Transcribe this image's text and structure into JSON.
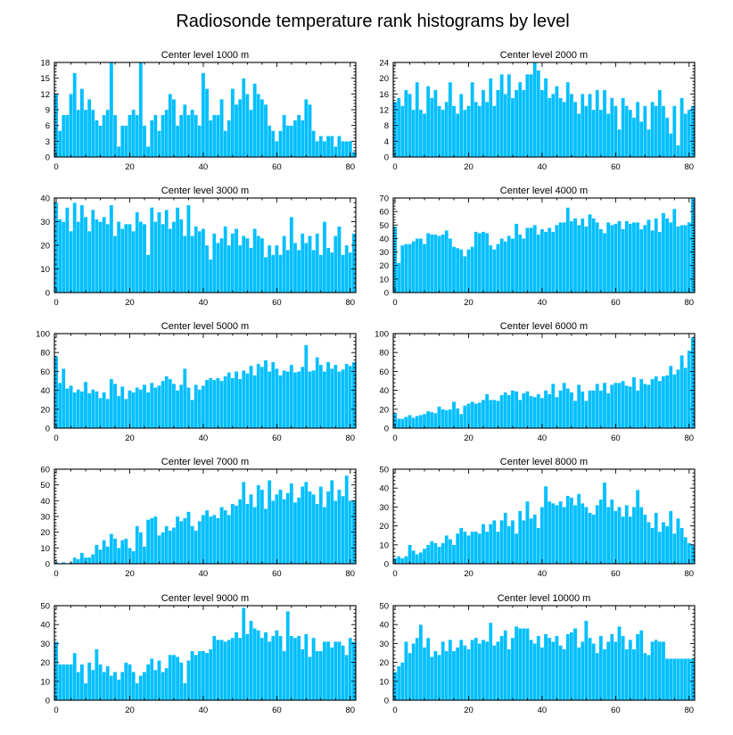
{
  "figure_title": "Radiosonde temperature rank histograms by level",
  "colors": {
    "bar": "#00bfff",
    "frame": "#000000",
    "background": "#ffffff"
  },
  "chart_data": [
    {
      "type": "bar",
      "title": "Center level 1000 m",
      "xlim": [
        -0.5,
        81.5
      ],
      "ylim": [
        0,
        18
      ],
      "xticks": [
        0,
        20,
        40,
        60,
        80
      ],
      "yticks": [
        0,
        3,
        6,
        9,
        12,
        15,
        18
      ],
      "values": [
        12,
        5,
        8,
        8,
        12,
        16,
        9,
        13,
        9,
        11,
        9,
        7,
        6,
        8,
        9,
        18,
        8,
        2,
        6,
        6,
        8,
        9,
        8,
        18,
        6,
        2,
        7,
        8,
        5,
        8,
        9,
        12,
        11,
        6,
        8,
        10,
        8,
        9,
        8,
        6,
        16,
        13,
        7,
        8,
        8,
        11,
        5,
        7,
        13,
        10,
        11,
        15,
        12,
        9,
        14,
        12,
        11,
        10,
        6,
        5,
        3,
        5,
        8,
        6,
        6,
        7,
        8,
        7,
        11,
        10,
        5,
        3,
        4,
        3,
        4,
        4,
        2,
        4,
        3,
        3,
        3,
        1
      ]
    },
    {
      "type": "bar",
      "title": "Center level 2000 m",
      "xlim": [
        -0.5,
        81.5
      ],
      "ylim": [
        0,
        24
      ],
      "xticks": [
        0,
        20,
        40,
        60,
        80
      ],
      "yticks": [
        0,
        4,
        8,
        12,
        16,
        20,
        24
      ],
      "values": [
        14,
        15,
        13,
        17,
        16,
        12,
        19,
        12,
        11,
        18,
        15,
        17,
        13,
        12,
        14,
        19,
        13,
        11,
        16,
        12,
        13,
        19,
        14,
        13,
        17,
        14,
        20,
        13,
        17,
        21,
        16,
        21,
        15,
        17,
        19,
        17,
        21,
        21,
        24,
        22,
        17,
        20,
        15,
        16,
        18,
        15,
        14,
        19,
        16,
        14,
        11,
        16,
        13,
        16,
        12,
        17,
        12,
        17,
        11,
        15,
        13,
        7,
        15,
        13,
        12,
        10,
        14,
        9,
        13,
        7,
        14,
        13,
        17,
        13,
        10,
        6,
        13,
        3,
        15,
        11,
        12,
        13
      ]
    },
    {
      "type": "bar",
      "title": "Center level 3000 m",
      "xlim": [
        -0.5,
        81.5
      ],
      "ylim": [
        0,
        40
      ],
      "xticks": [
        0,
        20,
        40,
        60,
        80
      ],
      "yticks": [
        0,
        10,
        20,
        30,
        40
      ],
      "values": [
        38,
        31,
        30,
        36,
        26,
        38,
        30,
        37,
        32,
        26,
        35,
        31,
        30,
        32,
        29,
        37,
        24,
        30,
        27,
        29,
        29,
        26,
        34,
        30,
        29,
        16,
        36,
        30,
        34,
        29,
        35,
        27,
        30,
        36,
        31,
        24,
        37,
        24,
        28,
        26,
        27,
        20,
        14,
        25,
        21,
        23,
        28,
        20,
        25,
        27,
        20,
        24,
        23,
        19,
        27,
        24,
        23,
        15,
        20,
        16,
        20,
        16,
        24,
        18,
        32,
        21,
        18,
        25,
        21,
        24,
        18,
        25,
        16,
        30,
        19,
        17,
        24,
        28,
        16,
        20,
        17,
        25
      ]
    },
    {
      "type": "bar",
      "title": "Center level 4000 m",
      "xlim": [
        -0.5,
        81.5
      ],
      "ylim": [
        0,
        70
      ],
      "xticks": [
        0,
        20,
        40,
        60,
        80
      ],
      "yticks": [
        0,
        10,
        20,
        30,
        40,
        50,
        60,
        70
      ],
      "values": [
        49,
        22,
        35,
        36,
        36,
        38,
        40,
        40,
        36,
        44,
        43,
        43,
        42,
        43,
        46,
        40,
        34,
        33,
        32,
        27,
        32,
        34,
        45,
        44,
        45,
        44,
        35,
        32,
        36,
        40,
        38,
        42,
        40,
        51,
        43,
        40,
        48,
        48,
        50,
        43,
        47,
        45,
        48,
        45,
        50,
        52,
        52,
        63,
        53,
        55,
        50,
        55,
        49,
        58,
        55,
        52,
        47,
        44,
        52,
        50,
        51,
        53,
        47,
        53,
        51,
        52,
        52,
        47,
        50,
        54,
        46,
        55,
        45,
        59,
        55,
        52,
        62,
        49,
        50,
        50,
        52,
        70
      ]
    },
    {
      "type": "bar",
      "title": "Center level 5000 m",
      "xlim": [
        -0.5,
        81.5
      ],
      "ylim": [
        0,
        100
      ],
      "xticks": [
        0,
        20,
        40,
        60,
        80
      ],
      "yticks": [
        0,
        20,
        40,
        60,
        80,
        100
      ],
      "values": [
        76,
        48,
        63,
        42,
        45,
        38,
        41,
        39,
        49,
        37,
        41,
        39,
        32,
        38,
        31,
        52,
        47,
        34,
        44,
        31,
        40,
        38,
        43,
        41,
        46,
        38,
        48,
        43,
        45,
        50,
        55,
        52,
        47,
        40,
        46,
        63,
        43,
        30,
        46,
        41,
        45,
        51,
        53,
        51,
        53,
        50,
        55,
        59,
        53,
        60,
        52,
        61,
        58,
        66,
        56,
        68,
        65,
        72,
        60,
        70,
        63,
        56,
        61,
        60,
        67,
        59,
        60,
        65,
        88,
        60,
        61,
        75,
        67,
        60,
        70,
        63,
        67,
        60,
        62,
        68,
        66,
        70
      ]
    },
    {
      "type": "bar",
      "title": "Center level 6000 m",
      "xlim": [
        -0.5,
        81.5
      ],
      "ylim": [
        0,
        100
      ],
      "xticks": [
        0,
        20,
        40,
        60,
        80
      ],
      "yticks": [
        0,
        20,
        40,
        60,
        80,
        100
      ],
      "values": [
        16,
        10,
        10,
        12,
        14,
        11,
        13,
        14,
        15,
        18,
        17,
        16,
        23,
        20,
        19,
        20,
        28,
        21,
        15,
        24,
        26,
        28,
        26,
        27,
        30,
        36,
        30,
        30,
        29,
        35,
        38,
        35,
        40,
        39,
        30,
        37,
        39,
        34,
        33,
        36,
        32,
        40,
        36,
        47,
        33,
        40,
        48,
        42,
        38,
        29,
        46,
        39,
        29,
        40,
        40,
        47,
        40,
        48,
        37,
        46,
        48,
        48,
        50,
        45,
        44,
        54,
        40,
        52,
        47,
        46,
        52,
        55,
        50,
        55,
        56,
        66,
        57,
        62,
        77,
        64,
        82,
        96
      ]
    },
    {
      "type": "bar",
      "title": "Center level 7000 m",
      "xlim": [
        -0.5,
        81.5
      ],
      "ylim": [
        0,
        60
      ],
      "xticks": [
        0,
        20,
        40,
        60,
        80
      ],
      "yticks": [
        0,
        10,
        20,
        30,
        40,
        50,
        60
      ],
      "values": [
        1,
        0,
        1,
        0,
        1,
        4,
        3,
        7,
        4,
        4,
        6,
        12,
        9,
        15,
        11,
        19,
        16,
        10,
        15,
        16,
        10,
        8,
        24,
        20,
        11,
        28,
        29,
        30,
        18,
        20,
        24,
        21,
        23,
        30,
        27,
        29,
        33,
        24,
        21,
        27,
        31,
        34,
        30,
        31,
        29,
        36,
        34,
        31,
        38,
        37,
        41,
        52,
        38,
        44,
        36,
        50,
        47,
        35,
        53,
        40,
        44,
        47,
        41,
        45,
        51,
        39,
        42,
        49,
        52,
        46,
        44,
        38,
        49,
        36,
        46,
        53,
        40,
        47,
        43,
        56,
        40,
        40
      ]
    },
    {
      "type": "bar",
      "title": "Center level 8000 m",
      "xlim": [
        -0.5,
        81.5
      ],
      "ylim": [
        0,
        50
      ],
      "xticks": [
        0,
        20,
        40,
        60,
        80
      ],
      "yticks": [
        0,
        10,
        20,
        30,
        40,
        50
      ],
      "values": [
        3,
        4,
        3,
        4,
        10,
        7,
        5,
        6,
        8,
        10,
        12,
        11,
        9,
        11,
        15,
        13,
        10,
        16,
        19,
        17,
        15,
        17,
        17,
        16,
        21,
        17,
        21,
        23,
        17,
        23,
        27,
        20,
        23,
        16,
        28,
        23,
        33,
        24,
        26,
        19,
        30,
        41,
        33,
        32,
        31,
        33,
        30,
        36,
        35,
        31,
        37,
        32,
        30,
        27,
        26,
        31,
        34,
        43,
        30,
        34,
        28,
        30,
        25,
        31,
        25,
        30,
        39,
        30,
        26,
        22,
        19,
        27,
        17,
        22,
        20,
        28,
        16,
        24,
        19,
        14,
        11,
        10
      ]
    },
    {
      "type": "bar",
      "title": "Center level 9000 m",
      "xlim": [
        -0.5,
        81.5
      ],
      "ylim": [
        0,
        50
      ],
      "xticks": [
        0,
        20,
        40,
        60,
        80
      ],
      "yticks": [
        0,
        10,
        20,
        30,
        40,
        50
      ],
      "values": [
        31,
        19,
        19,
        19,
        19,
        25,
        15,
        19,
        9,
        20,
        16,
        27,
        19,
        15,
        18,
        13,
        15,
        11,
        15,
        20,
        19,
        15,
        9,
        13,
        15,
        19,
        22,
        16,
        21,
        15,
        17,
        24,
        24,
        23,
        20,
        9,
        21,
        26,
        24,
        26,
        26,
        25,
        27,
        34,
        32,
        32,
        31,
        32,
        33,
        36,
        33,
        49,
        35,
        42,
        38,
        37,
        33,
        36,
        31,
        34,
        37,
        34,
        26,
        47,
        34,
        33,
        34,
        27,
        35,
        23,
        33,
        26,
        26,
        31,
        31,
        28,
        31,
        31,
        29,
        24,
        33,
        31
      ]
    },
    {
      "type": "bar",
      "title": "Center level 10000 m",
      "xlim": [
        -0.5,
        81.5
      ],
      "ylim": [
        0,
        50
      ],
      "xticks": [
        0,
        20,
        40,
        60,
        80
      ],
      "yticks": [
        0,
        10,
        20,
        30,
        40,
        50
      ],
      "values": [
        15,
        18,
        20,
        31,
        25,
        30,
        33,
        40,
        28,
        33,
        23,
        26,
        24,
        31,
        26,
        32,
        26,
        28,
        32,
        29,
        27,
        32,
        33,
        30,
        32,
        31,
        41,
        29,
        31,
        34,
        37,
        27,
        33,
        39,
        38,
        38,
        38,
        32,
        30,
        34,
        28,
        35,
        33,
        31,
        34,
        29,
        27,
        35,
        36,
        38,
        28,
        31,
        42,
        33,
        30,
        25,
        34,
        27,
        31,
        35,
        31,
        39,
        34,
        27,
        32,
        27,
        35,
        37,
        25,
        24,
        31,
        32,
        31,
        31,
        22,
        22,
        22,
        22,
        22,
        22,
        22,
        22
      ]
    }
  ]
}
